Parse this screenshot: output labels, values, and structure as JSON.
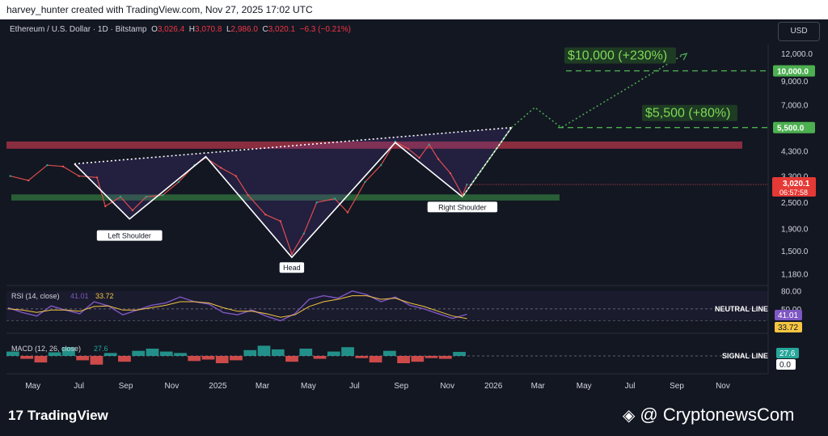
{
  "header": {
    "credit": "harvey_hunter created with TradingView.com, Nov 27, 2025 17:02 UTC"
  },
  "symbol": {
    "name": "Ethereum / U.S. Dollar · 1D · Bitstamp",
    "o_label": "O",
    "o": "3,026.4",
    "h_label": "H",
    "h": "3,070.8",
    "l_label": "L",
    "l": "2,986.0",
    "c_label": "C",
    "c": "3,020.1",
    "change": "−6.3 (−0.21%)"
  },
  "currency": "USD",
  "colors": {
    "background": "#131722",
    "up": "#26a69a",
    "down": "#ef5350",
    "target": "#4caf50",
    "pattern": "#ffffff",
    "resistance": "#b2364a",
    "support": "#2e6b3a",
    "rsi": "#7e57c2",
    "rsi_ma": "#f5c542"
  },
  "chart_data": [
    {
      "type": "line",
      "title": "Ethereum / U.S. Dollar · 1D · Bitstamp",
      "scale": "log",
      "ylim": [
        1050,
        13200
      ],
      "x_axis_labels": [
        "May",
        "Jul",
        "Sep",
        "Nov",
        "2025",
        "Mar",
        "May",
        "Jul",
        "Sep",
        "Nov",
        "2026",
        "Mar",
        "May",
        "Jul",
        "Sep",
        "Nov"
      ],
      "y_ticks": [
        "12,000.0",
        "9,000.0",
        "7,000.0",
        "5,500.0",
        "4,300.0",
        "3,300.0",
        "2,500.0",
        "1,900.0",
        "1,500.0",
        "1,180.0"
      ],
      "y_tick_values": [
        12000,
        9000,
        7000,
        5500,
        4300,
        3300,
        2500,
        1900,
        1500,
        1180
      ],
      "price_series": [
        {
          "date": "2024-04-01",
          "value": 3300
        },
        {
          "date": "2024-04-25",
          "value": 3150
        },
        {
          "date": "2024-05-20",
          "value": 3700
        },
        {
          "date": "2024-06-10",
          "value": 3650
        },
        {
          "date": "2024-07-01",
          "value": 3300
        },
        {
          "date": "2024-07-25",
          "value": 3250
        },
        {
          "date": "2024-08-05",
          "value": 2400
        },
        {
          "date": "2024-08-25",
          "value": 2650
        },
        {
          "date": "2024-09-10",
          "value": 2300
        },
        {
          "date": "2024-09-28",
          "value": 2650
        },
        {
          "date": "2024-10-20",
          "value": 2700
        },
        {
          "date": "2024-11-10",
          "value": 3100
        },
        {
          "date": "2024-12-01",
          "value": 3700
        },
        {
          "date": "2024-12-16",
          "value": 4000
        },
        {
          "date": "2025-01-05",
          "value": 3600
        },
        {
          "date": "2025-01-25",
          "value": 3300
        },
        {
          "date": "2025-02-10",
          "value": 2700
        },
        {
          "date": "2025-03-05",
          "value": 2200
        },
        {
          "date": "2025-03-25",
          "value": 2050
        },
        {
          "date": "2025-04-09",
          "value": 1450
        },
        {
          "date": "2025-04-25",
          "value": 1800
        },
        {
          "date": "2025-05-12",
          "value": 2500
        },
        {
          "date": "2025-06-05",
          "value": 2600
        },
        {
          "date": "2025-06-22",
          "value": 2250
        },
        {
          "date": "2025-07-15",
          "value": 3100
        },
        {
          "date": "2025-08-05",
          "value": 3700
        },
        {
          "date": "2025-08-24",
          "value": 4750
        },
        {
          "date": "2025-09-10",
          "value": 4400
        },
        {
          "date": "2025-09-25",
          "value": 4000
        },
        {
          "date": "2025-10-08",
          "value": 4600
        },
        {
          "date": "2025-10-20",
          "value": 3950
        },
        {
          "date": "2025-11-05",
          "value": 3400
        },
        {
          "date": "2025-11-21",
          "value": 2700
        },
        {
          "date": "2025-11-27",
          "value": 3020.1
        }
      ],
      "head_and_shoulders": [
        {
          "date": "2024-06-25",
          "value": 3750
        },
        {
          "date": "2024-09-06",
          "value": 2100
        },
        {
          "date": "2024-12-16",
          "value": 4050
        },
        {
          "date": "2025-04-09",
          "value": 1400
        },
        {
          "date": "2025-08-24",
          "value": 4700
        },
        {
          "date": "2025-11-21",
          "value": 2650
        },
        {
          "date": "2026-01-25",
          "value": 5500
        }
      ],
      "neckline": [
        {
          "date": "2024-06-25",
          "value": 3750
        },
        {
          "date": "2026-01-25",
          "value": 5500
        }
      ],
      "projection": [
        {
          "date": "2025-11-21",
          "value": 2650
        },
        {
          "date": "2026-01-25",
          "value": 5500
        },
        {
          "date": "2026-02-25",
          "value": 6800
        },
        {
          "date": "2026-04-01",
          "value": 5500
        },
        {
          "date": "2026-09-12",
          "value": 12000
        }
      ],
      "resistance_zone": [
        4400,
        4750
      ],
      "support_zone": [
        2550,
        2720
      ],
      "pattern_labels": [
        "Left Shoulder",
        "Head",
        "Right Shoulder"
      ],
      "targets": [
        {
          "label": "$10,000 (+230%)",
          "value": 10000,
          "axis_label": "10,000.0"
        },
        {
          "label": "$5,500 (+80%)",
          "value": 5500,
          "axis_label": "5,500.0"
        }
      ],
      "last_price": {
        "value": "3,020.1",
        "countdown": "06:57:58"
      }
    },
    {
      "type": "line",
      "title": "RSI (14, close)",
      "legend_values": [
        "41.01",
        "33.72"
      ],
      "ylim": [
        20,
        85
      ],
      "y_ticks": [
        "80.00",
        "50.00"
      ],
      "y_tick_values": [
        80,
        50
      ],
      "axis_values": [
        "41.01",
        "33.72"
      ],
      "reference_label": "NEUTRAL LINE",
      "series": [
        {
          "values": [
            52,
            44,
            38,
            55,
            48,
            42,
            62,
            55,
            40,
            48,
            56,
            60,
            70,
            62,
            58,
            44,
            40,
            48,
            38,
            30,
            42,
            66,
            72,
            68,
            80,
            74,
            62,
            70,
            56,
            50,
            42,
            34,
            41
          ]
        },
        {
          "values": [
            50,
            48,
            44,
            48,
            48,
            46,
            54,
            55,
            48,
            48,
            52,
            56,
            62,
            62,
            60,
            52,
            46,
            46,
            42,
            36,
            40,
            54,
            62,
            66,
            72,
            72,
            66,
            68,
            60,
            54,
            46,
            38,
            33.72
          ]
        }
      ]
    },
    {
      "type": "bar",
      "title": "MACD (12, 26, close)",
      "legend_values": [
        "27.6"
      ],
      "axis_values": [
        "27.6",
        "0.0"
      ],
      "reference_label": "SIGNAL LINE",
      "values": [
        30,
        -20,
        -45,
        25,
        60,
        -30,
        -60,
        20,
        -40,
        35,
        50,
        30,
        20,
        -35,
        -25,
        -50,
        -30,
        40,
        70,
        45,
        -40,
        50,
        -20,
        30,
        60,
        -15,
        -45,
        35,
        -50,
        -40,
        -15,
        -20,
        27.6
      ]
    }
  ],
  "footer": {
    "brand": "TradingView",
    "source": "@ CryptonewsCom"
  }
}
